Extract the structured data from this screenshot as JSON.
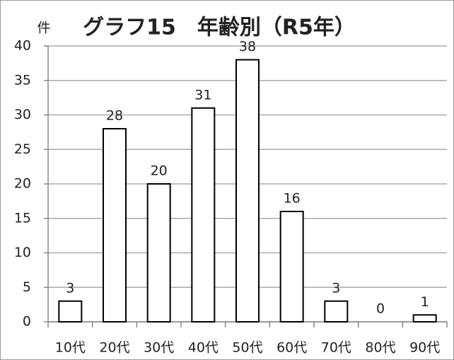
{
  "chart_data": {
    "type": "bar",
    "title": "グラフ15　年齢別（R5年）",
    "y_label": "件",
    "categories": [
      "10代",
      "20代",
      "30代",
      "40代",
      "50代",
      "60代",
      "70代",
      "80代",
      "90代"
    ],
    "values": [
      3,
      28,
      20,
      31,
      38,
      16,
      3,
      0,
      1
    ],
    "color": "#ffffff",
    "edge_color": "#000000",
    "ylim": [
      0,
      40
    ],
    "yticks": [
      0,
      5,
      10,
      15,
      20,
      25,
      30,
      35,
      40
    ],
    "grid": true
  }
}
